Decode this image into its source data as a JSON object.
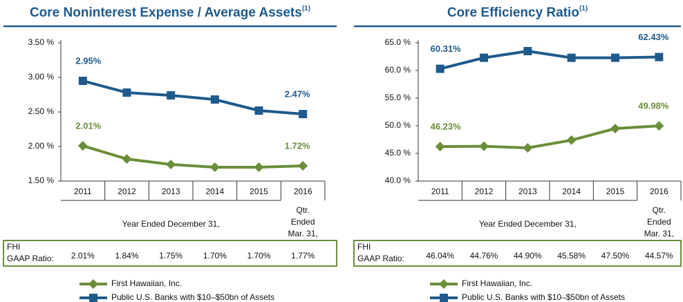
{
  "chart_data": [
    {
      "type": "line",
      "title": "Core Noninterest Expense / Average Assets",
      "title_note": "(1)",
      "categories": [
        "2011",
        "2012",
        "2013",
        "2014",
        "2015",
        "2016"
      ],
      "period_label": "Year Ended December 31,",
      "last_period_label": [
        "Qtr.",
        "Ended",
        "Mar. 31,"
      ],
      "ylim": [
        1.5,
        3.5
      ],
      "yticks": [
        {
          "value": 1.5,
          "label": "1.50 %"
        },
        {
          "value": 2.0,
          "label": "2.00 %"
        },
        {
          "value": 2.5,
          "label": "2.50 %"
        },
        {
          "value": 3.0,
          "label": "3.00 %"
        },
        {
          "value": 3.5,
          "label": "3.50 %"
        }
      ],
      "series": [
        {
          "name": "First Hawaiian, Inc.",
          "color": "#6b8e3a",
          "marker": "diamond",
          "values": [
            2.01,
            1.82,
            1.74,
            1.7,
            1.7,
            1.72
          ],
          "value_labels": [
            "2.01%",
            null,
            null,
            null,
            null,
            "1.72%"
          ]
        },
        {
          "name": "Public U.S. Banks with $10–$50bn of Assets",
          "color": "#1f5a8c",
          "marker": "square",
          "values": [
            2.95,
            2.78,
            2.74,
            2.68,
            2.52,
            2.47
          ],
          "value_labels": [
            "2.95%",
            null,
            null,
            null,
            null,
            "2.47%"
          ]
        }
      ],
      "table": {
        "label": [
          "FHI",
          "GAAP Ratio:"
        ],
        "values": [
          "2.01%",
          "1.84%",
          "1.75%",
          "1.70%",
          "1.70%",
          "1.77%"
        ]
      }
    },
    {
      "type": "line",
      "title": "Core Efficiency Ratio",
      "title_note": "(1)",
      "categories": [
        "2011",
        "2012",
        "2013",
        "2014",
        "2015",
        "2016"
      ],
      "period_label": "Year Ended December 31,",
      "last_period_label": [
        "Qtr.",
        "Ended",
        "Mar. 31,"
      ],
      "ylim": [
        40,
        65
      ],
      "yticks": [
        {
          "value": 40,
          "label": "40.0 %"
        },
        {
          "value": 45,
          "label": "45.0 %"
        },
        {
          "value": 50,
          "label": "50.0 %"
        },
        {
          "value": 55,
          "label": "55.0 %"
        },
        {
          "value": 60,
          "label": "60.0 %"
        },
        {
          "value": 65,
          "label": "65.0 %"
        }
      ],
      "series": [
        {
          "name": "First Hawaiian, Inc.",
          "color": "#6b8e3a",
          "marker": "diamond",
          "values": [
            46.23,
            46.3,
            46.0,
            47.4,
            49.5,
            49.98
          ],
          "value_labels": [
            "46.23%",
            null,
            null,
            null,
            null,
            "49.98%"
          ]
        },
        {
          "name": "Public U.S. Banks with $10–$50bn of Assets",
          "color": "#1f5a8c",
          "marker": "square",
          "values": [
            60.31,
            62.3,
            63.5,
            62.3,
            62.3,
            62.43
          ],
          "value_labels": [
            "60.31%",
            null,
            null,
            null,
            null,
            "62.43%"
          ]
        }
      ],
      "table": {
        "label": [
          "FHI",
          "GAAP Ratio:"
        ],
        "values": [
          "46.04%",
          "44.76%",
          "44.90%",
          "45.58%",
          "47.50%",
          "44.57%"
        ]
      }
    }
  ]
}
